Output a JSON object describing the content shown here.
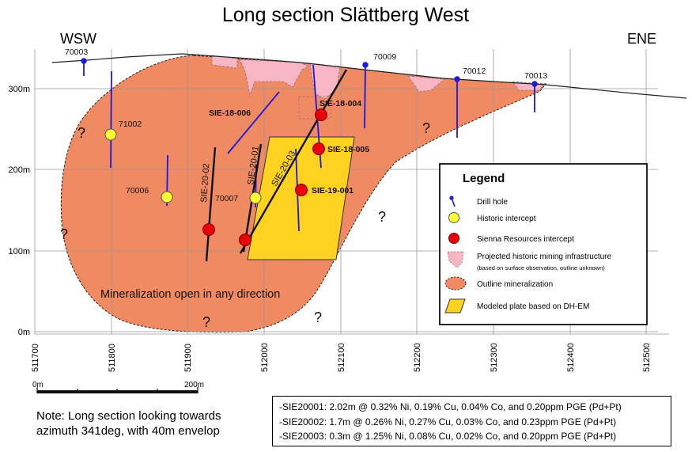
{
  "title": "Long section Slättberg West",
  "direction_left": "WSW",
  "direction_right": "ENE",
  "elevation_ticks": [
    "300m",
    "200m",
    "100m",
    "0m"
  ],
  "easting_ticks": [
    "511700",
    "511800",
    "511900",
    "512000",
    "512100",
    "512200",
    "512300",
    "512400",
    "512500"
  ],
  "drill_holes": [
    "70003",
    "70009",
    "70012",
    "70013",
    "71002",
    "70006",
    "70007"
  ],
  "hole_traces": [
    "SIE-20-02",
    "SIE-20-01",
    "SIE-20-03"
  ],
  "sienna_intercepts": [
    "SIE-18-006",
    "SIE-18-004",
    "SIE-18-005",
    "SIE-19-001"
  ],
  "question_mark": "?",
  "mineralization_label": "Mineralization open in any direction",
  "legend": {
    "title": "Legend",
    "items": [
      {
        "label": "Drill hole",
        "sublabel": ""
      },
      {
        "label": "Historic intercept",
        "sublabel": ""
      },
      {
        "label": "Sienna Resources intercept",
        "sublabel": ""
      },
      {
        "label": "Projected historic mining infrastructure",
        "sublabel": "(based on surface observation, outline unknown)"
      },
      {
        "label": "Outline mineralization",
        "sublabel": ""
      },
      {
        "label": "Modeled plate based on DH-EM",
        "sublabel": ""
      }
    ]
  },
  "scale_bar": {
    "start": "0m",
    "end": "200m"
  },
  "note": [
    "Note: Long section looking towards",
    "azimuth 341deg, with 40m envelop"
  ],
  "results": [
    "-SIE20001: 2.02m @ 0.32% Ni, 0.19% Cu, 0.04% Co, and 0.20ppm PGE (Pd+Pt)",
    "-SIE20002: 1.7m @ 0.26% Ni, 0.27% Cu, 0.03% Co, and 0.23ppm PGE (Pd+Pt)",
    "-SIE20003: 0.3m @ 1.25% Ni, 0.08% Cu, 0.02% Co, and 0.20ppm PGE (Pd+Pt)"
  ],
  "colors": {
    "mineralization": "#f08a62",
    "mining_infrastructure": "#f6b6c4",
    "plate": "#ffd21f",
    "historic_intercept": "#ffff33",
    "sienna_intercept": "#e8000b",
    "drill_hole": "#1a1adc",
    "grid": "#9a9a9a"
  }
}
